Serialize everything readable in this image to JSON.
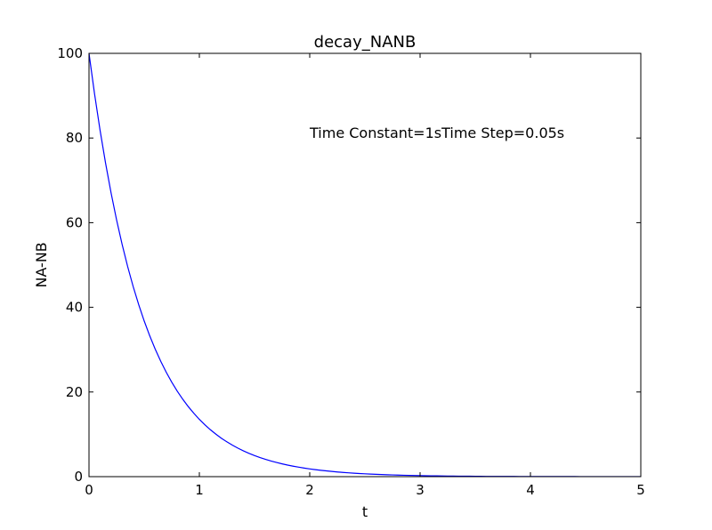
{
  "chart_data": {
    "type": "line",
    "title": "decay_NANB",
    "xlabel": "t",
    "ylabel": "NA-NB",
    "xlim": [
      0,
      5
    ],
    "ylim": [
      0,
      100
    ],
    "xticks": [
      "0",
      "1",
      "2",
      "3",
      "4",
      "5"
    ],
    "yticks": [
      "0",
      "20",
      "40",
      "60",
      "80",
      "100"
    ],
    "grid": false,
    "annotation": {
      "text": "Time Constant=1sTime Step=0.05s",
      "x": 2.0,
      "y": 80
    },
    "series": [
      {
        "color": "#0000ff",
        "x": [
          0.0,
          0.05,
          0.1,
          0.15,
          0.2,
          0.25,
          0.3,
          0.35,
          0.4,
          0.45,
          0.5,
          0.55,
          0.6,
          0.65,
          0.7,
          0.75,
          0.8,
          0.85,
          0.9,
          0.95,
          1.0,
          1.05,
          1.1,
          1.15,
          1.2,
          1.25,
          1.3,
          1.35,
          1.4,
          1.45,
          1.5,
          1.55,
          1.6,
          1.65,
          1.7,
          1.75,
          1.8,
          1.85,
          1.9,
          1.95,
          2.0,
          2.05,
          2.1,
          2.15,
          2.2,
          2.25,
          2.3,
          2.35,
          2.4,
          2.45,
          2.5,
          2.55,
          2.6,
          2.65,
          2.7,
          2.75,
          2.8,
          2.85,
          2.9,
          2.95,
          3.0,
          3.05,
          3.1,
          3.15,
          3.2,
          3.25,
          3.3,
          3.35,
          3.4,
          3.45,
          3.5,
          3.55,
          3.6,
          3.65,
          3.7,
          3.75,
          3.8,
          3.85,
          3.9,
          3.95,
          4.0,
          4.05,
          4.1,
          4.15,
          4.2,
          4.25,
          4.3,
          4.35,
          4.4,
          4.45,
          4.5,
          4.55,
          4.6,
          4.65,
          4.7,
          4.75,
          4.8,
          4.85,
          4.9,
          4.95,
          5.0
        ],
        "y": [
          100.0,
          90.48,
          81.87,
          74.08,
          67.03,
          60.65,
          54.88,
          49.66,
          44.93,
          40.66,
          36.79,
          33.29,
          30.12,
          27.25,
          24.66,
          22.31,
          20.19,
          18.27,
          16.53,
          14.96,
          13.53,
          12.25,
          11.08,
          10.03,
          9.07,
          8.21,
          7.43,
          6.72,
          6.08,
          5.5,
          4.98,
          4.5,
          4.08,
          3.69,
          3.34,
          3.02,
          2.73,
          2.47,
          2.24,
          2.02,
          1.83,
          1.66,
          1.5,
          1.36,
          1.23,
          1.11,
          1.0,
          0.91,
          0.82,
          0.74,
          0.67,
          0.61,
          0.55,
          0.5,
          0.45,
          0.41,
          0.37,
          0.33,
          0.3,
          0.27,
          0.25,
          0.22,
          0.2,
          0.18,
          0.17,
          0.15,
          0.14,
          0.12,
          0.11,
          0.1,
          0.09,
          0.08,
          0.07,
          0.07,
          0.06,
          0.06,
          0.05,
          0.05,
          0.04,
          0.04,
          0.03,
          0.03,
          0.03,
          0.03,
          0.02,
          0.02,
          0.02,
          0.02,
          0.02,
          0.01,
          0.01,
          0.01,
          0.01,
          0.01,
          0.01,
          0.01,
          0.01,
          0.01,
          0.01,
          0.01,
          0.01
        ]
      }
    ]
  }
}
